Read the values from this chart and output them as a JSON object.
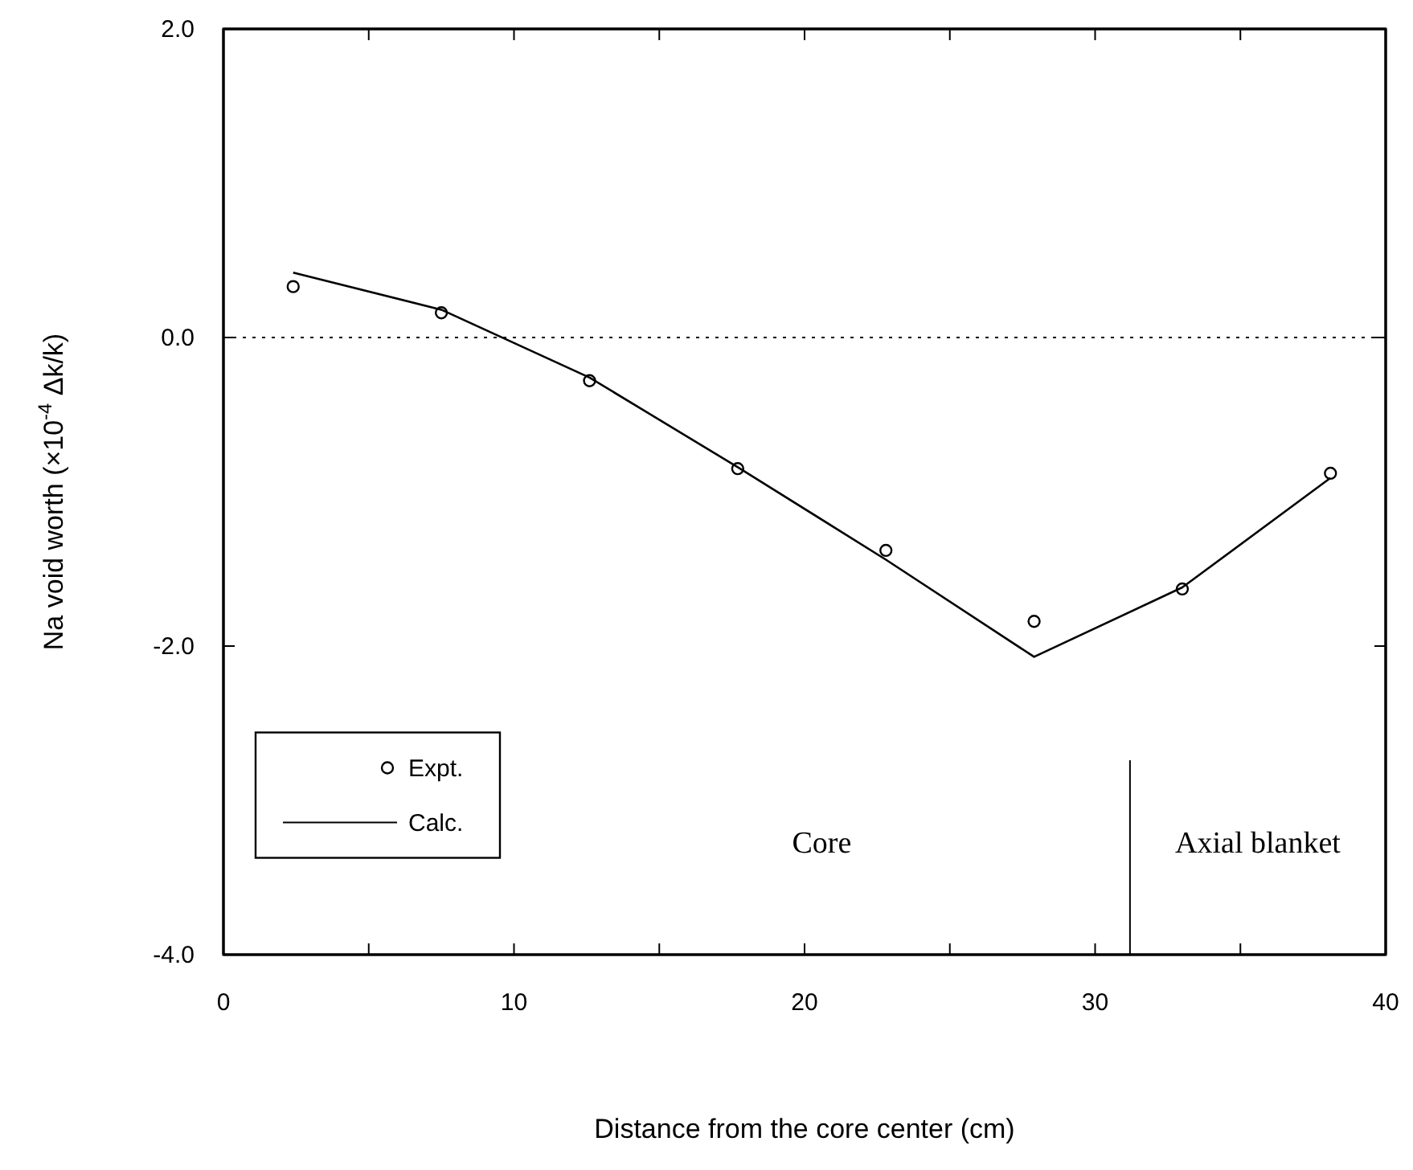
{
  "chart_data": {
    "type": "scatter",
    "xlabel": "Distance from the core center (cm)",
    "ylabel": "Na void worth (×10$^{-4}$ Δk/k)",
    "xlim": [
      0,
      40
    ],
    "xticks": [
      0,
      {
        "value": 5,
        "label": null
      },
      10,
      {
        "value": 15,
        "label": null
      },
      20,
      {
        "value": 25,
        "label": null
      },
      30,
      {
        "value": 35,
        "label": null
      },
      40
    ],
    "ylim": [
      -4,
      2
    ],
    "yticks": [
      {
        "value": -4,
        "label": "-4.0"
      },
      {
        "value": -2,
        "label": "-2.0"
      },
      {
        "value": 0,
        "label": "0.0"
      },
      {
        "value": 2,
        "label": "2.0"
      }
    ],
    "series": [
      {
        "name": "Expt.",
        "marker": "circle",
        "color": "#000000",
        "x": [
          2.4,
          7.5,
          12.6,
          17.7,
          22.8,
          27.9,
          33.0,
          38.1
        ],
        "values": [
          0.33,
          0.16,
          -0.28,
          -0.85,
          -1.38,
          -1.84,
          -1.63,
          -0.88
        ]
      },
      {
        "name": "Calc.",
        "type": "line",
        "marker": "none",
        "line_style": "solid",
        "color": "#000000",
        "x": [
          2.4,
          7.5,
          12.6,
          17.7,
          22.8,
          27.9,
          33.0,
          38.1
        ],
        "values": [
          0.42,
          0.18,
          -0.26,
          -0.84,
          -1.44,
          -2.07,
          -1.62,
          -0.91
        ]
      }
    ],
    "ref_lines": [
      {
        "axis": "y",
        "value": 0,
        "line_style": "dotted",
        "color": "#000000"
      },
      {
        "axis": "x",
        "value": 31.2,
        "line_style": "solid",
        "color": "#000000"
      }
    ],
    "annotations": [
      "Core",
      "Axial blanket"
    ],
    "legend": "bottom left",
    "grid": false
  }
}
